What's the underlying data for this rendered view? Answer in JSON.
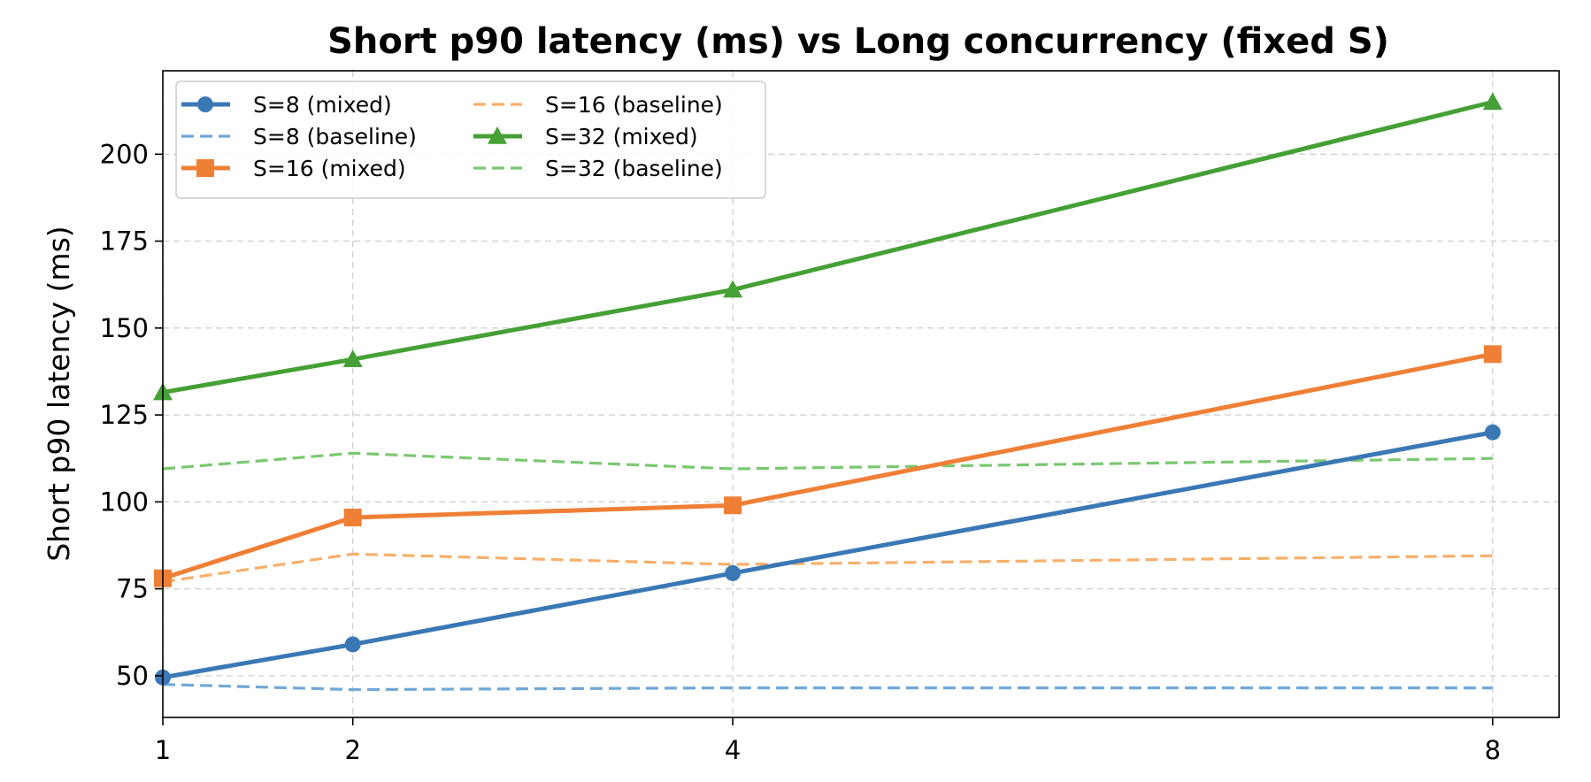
{
  "chart_data": {
    "type": "line",
    "title": "Short p90 latency (ms) vs Long concurrency (fixed S)",
    "xlabel": "",
    "ylabel": "Short p90 latency (ms)",
    "x": [
      1,
      2,
      4,
      8
    ],
    "x_ticks": [
      "1",
      "2",
      "4",
      "8"
    ],
    "y_ticks": [
      50,
      75,
      100,
      125,
      150,
      175,
      200
    ],
    "xlim": [
      1,
      8.35
    ],
    "ylim": [
      38,
      224
    ],
    "grid": true,
    "legend_position": "top-left",
    "legend_columns": 2,
    "series": [
      {
        "name": "S=8 (mixed)",
        "values": [
          49.5,
          59,
          79.5,
          120
        ],
        "color": "#3a78b5",
        "style": "solid",
        "marker": "circle"
      },
      {
        "name": "S=8 (baseline)",
        "values": [
          47.5,
          46,
          46.5,
          46.5
        ],
        "color": "#6fa8d6",
        "style": "dashed",
        "marker": "none"
      },
      {
        "name": "S=16 (mixed)",
        "values": [
          78,
          95.5,
          99,
          142.5
        ],
        "color": "#f07f36",
        "style": "solid",
        "marker": "square"
      },
      {
        "name": "S=16 (baseline)",
        "values": [
          77,
          85,
          82,
          84.5
        ],
        "color": "#f5b06b",
        "style": "dashed",
        "marker": "none"
      },
      {
        "name": "S=32 (mixed)",
        "values": [
          131.5,
          141,
          161,
          215
        ],
        "color": "#45a035",
        "style": "solid",
        "marker": "triangle"
      },
      {
        "name": "S=32 (baseline)",
        "values": [
          109.5,
          114,
          109.5,
          112.5
        ],
        "color": "#7ac870",
        "style": "dashed",
        "marker": "none"
      }
    ]
  }
}
